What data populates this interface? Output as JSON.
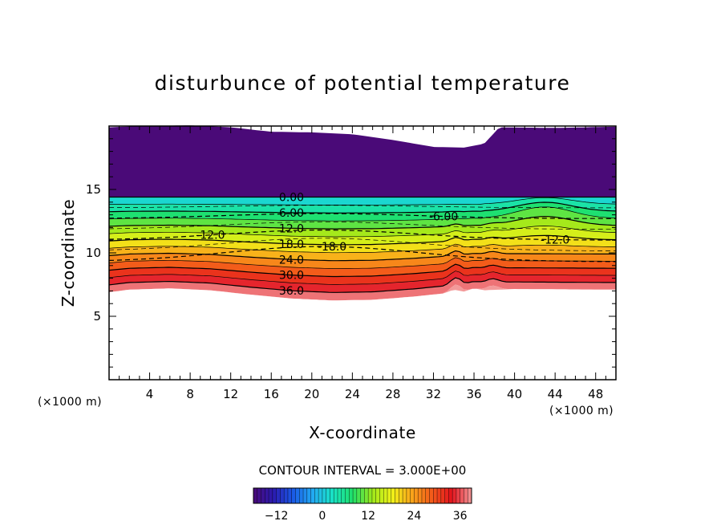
{
  "chart_data": {
    "type": "contour",
    "title": "disturbunce of potential temperature",
    "xlabel": "X-coordinate",
    "ylabel": "Z-coordinate",
    "x_unit": "(×1000 m)",
    "y_unit": "(×1000 m)",
    "xlim": [
      0,
      50
    ],
    "ylim": [
      0,
      20
    ],
    "x_ticks": [
      "4",
      "8",
      "12",
      "16",
      "20",
      "24",
      "28",
      "32",
      "36",
      "40",
      "44",
      "48"
    ],
    "y_ticks": [
      "5",
      "10",
      "15"
    ],
    "contour_interval_text": "CONTOUR INTERVAL = 3.000E+00",
    "contour_interval": 3.0,
    "value_range": [
      -18,
      39
    ],
    "levels": [
      -18,
      -15,
      -12,
      -9,
      -6,
      -3,
      0,
      3,
      6,
      9,
      12,
      15,
      18,
      21,
      24,
      27,
      30,
      33,
      36,
      39
    ],
    "negative_contours_dashed": true,
    "contour_labels": [
      "-18.0",
      "-12.0",
      "-12.0",
      "-6.00",
      "0.00",
      "6.00",
      "12.0",
      "18.0",
      "24.0",
      "30.0",
      "36.0"
    ],
    "colorbar": {
      "ticks": [
        "-12",
        "0",
        "12",
        "24",
        "36"
      ],
      "range": [
        -18,
        39
      ],
      "colormap": "rainbow purple-blue-cyan-green-yellow-orange-red-pink"
    },
    "cmap_colors": [
      "#4a0a78",
      "#2b1ab0",
      "#1a5ae6",
      "#22aaf2",
      "#19e3c6",
      "#1ee06a",
      "#9ee81b",
      "#f1f219",
      "#f9a41a",
      "#f35a1a",
      "#e3131d",
      "#f39a9a"
    ]
  }
}
